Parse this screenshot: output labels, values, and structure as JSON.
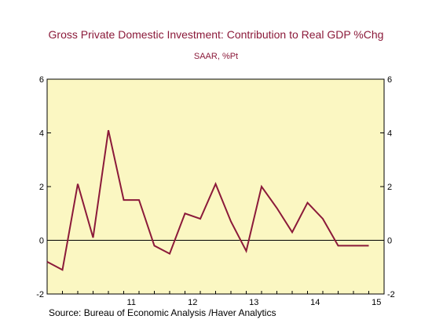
{
  "chart_data": {
    "type": "line",
    "title": "Gross Private Domestic Investment: Contribution to Real GDP %Chg",
    "subtitle": "SAAR, %Pt",
    "source": "Source:  Bureau of Economic Analysis /Haver Analytics",
    "xlabel": "",
    "ylabel": "",
    "ylim": [
      -2,
      6
    ],
    "yticks": [
      -2,
      0,
      2,
      4,
      6
    ],
    "xlim": [
      2010.125,
      2015.625
    ],
    "year_labels": [
      {
        "label": "11",
        "x": 2011.5
      },
      {
        "label": "12",
        "x": 2012.5
      },
      {
        "label": "13",
        "x": 2013.5
      },
      {
        "label": "14",
        "x": 2014.5
      },
      {
        "label": "15",
        "x": 2015.5
      }
    ],
    "grid": false,
    "zero_line": true,
    "legend": "none",
    "series": [
      {
        "color": "#8b1a3a",
        "x": [
          2010.125,
          2010.375,
          2010.625,
          2010.875,
          2011.125,
          2011.375,
          2011.625,
          2011.875,
          2012.125,
          2012.375,
          2012.625,
          2012.875,
          2013.125,
          2013.375,
          2013.625,
          2013.875,
          2014.125,
          2014.375,
          2014.625,
          2014.875,
          2015.125,
          2015.375
        ],
        "y": [
          -0.8,
          -1.1,
          2.1,
          0.1,
          4.1,
          1.5,
          1.5,
          -0.2,
          -0.5,
          1.0,
          0.8,
          2.1,
          0.7,
          -0.4,
          2.0,
          1.2,
          0.3,
          1.4,
          0.8,
          -0.2,
          -0.2,
          -0.2
        ]
      }
    ],
    "colors": {
      "plot_background": "#fbf7c2",
      "title_color": "#8b1a3a",
      "line_color": "#8b1a3a"
    }
  }
}
